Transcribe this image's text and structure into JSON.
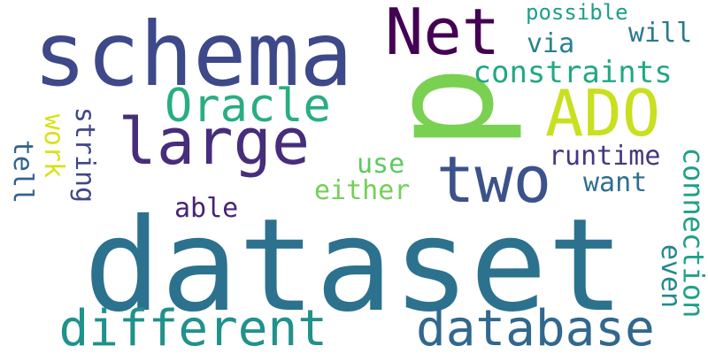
{
  "words": [
    {
      "text": "dataset",
      "color": "#2c728e"
    },
    {
      "text": "schema",
      "color": "#3e4989"
    },
    {
      "text": "p",
      "color": "#7ad151"
    },
    {
      "text": "Net",
      "color": "#440154"
    },
    {
      "text": "large",
      "color": "#472d7b"
    },
    {
      "text": "ADO",
      "color": "#c8e020"
    },
    {
      "text": "two",
      "color": "#3b528b"
    },
    {
      "text": "different",
      "color": "#21918c"
    },
    {
      "text": "database",
      "color": "#31688e"
    },
    {
      "text": "Oracle",
      "color": "#28ae80"
    },
    {
      "text": "constraints",
      "color": "#22a884"
    },
    {
      "text": "possible",
      "color": "#1f9e89"
    },
    {
      "text": "will",
      "color": "#2a788e"
    },
    {
      "text": "via",
      "color": "#26828e"
    },
    {
      "text": "runtime",
      "color": "#453781"
    },
    {
      "text": "want",
      "color": "#2d708e"
    },
    {
      "text": "use",
      "color": "#5ec962"
    },
    {
      "text": "either",
      "color": "#73d056"
    },
    {
      "text": "able",
      "color": "#482475"
    },
    {
      "text": "connection",
      "color": "#1fa187"
    },
    {
      "text": "even",
      "color": "#23888e"
    },
    {
      "text": "work",
      "color": "#d8e219"
    },
    {
      "text": "string",
      "color": "#3f4788"
    },
    {
      "text": "tell",
      "color": "#33638d"
    }
  ]
}
